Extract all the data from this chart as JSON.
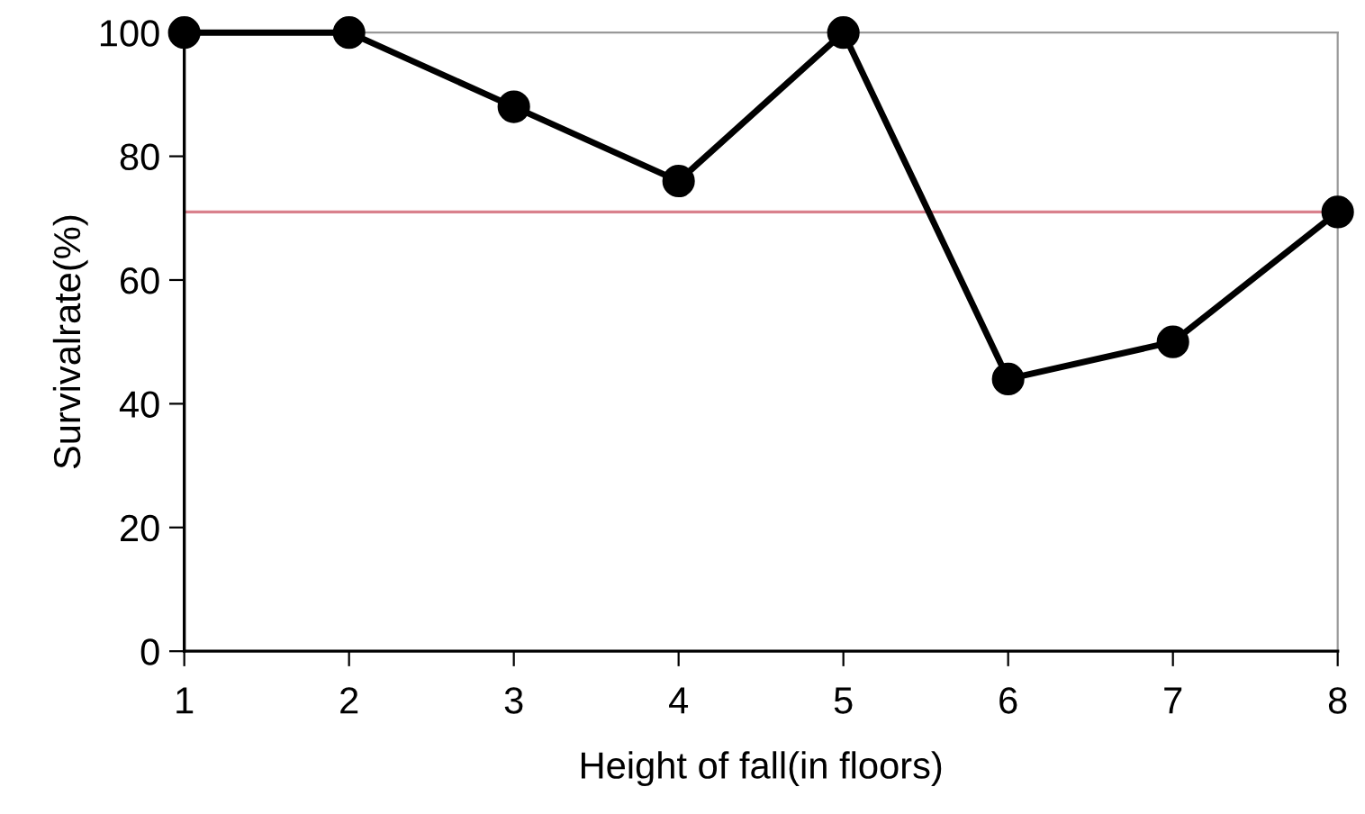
{
  "chart_data": {
    "type": "line",
    "xlabel": "Height of fall(in floors)",
    "ylabel": "Survivalrate(%)",
    "x": [
      1,
      2,
      3,
      4,
      5,
      6,
      7,
      8
    ],
    "series": [
      {
        "color": "#000000",
        "values": [
          100,
          100,
          88,
          76,
          100,
          44,
          50,
          71
        ]
      }
    ],
    "xlim": [
      1,
      8
    ],
    "xticks": [
      1,
      2,
      3,
      4,
      5,
      6,
      7,
      8
    ],
    "ylim": [
      0,
      100
    ],
    "yticks": [
      0,
      20,
      40,
      60,
      80,
      100
    ],
    "ref_lines": [
      {
        "axis": "y",
        "value": 71,
        "color": "#d9818c"
      }
    ],
    "marker": "circle",
    "line_style": "solid",
    "grid": false,
    "legend": false
  }
}
